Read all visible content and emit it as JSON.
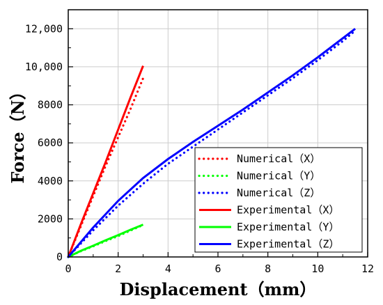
{
  "chart_data": {
    "type": "line",
    "xlabel": "Displacement（mm）",
    "ylabel": "Force（N）",
    "xlim": [
      0,
      12
    ],
    "ylim": [
      0,
      13000
    ],
    "xticks": [
      0,
      2,
      4,
      6,
      8,
      10,
      12
    ],
    "xtick_labels": [
      "0",
      "2",
      "4",
      "6",
      "8",
      "10",
      "12"
    ],
    "yticks": [
      0,
      2000,
      4000,
      6000,
      8000,
      10000,
      12000
    ],
    "ytick_labels": [
      "0",
      "2000",
      "4000",
      "6000",
      "8000",
      "10,000",
      "12,000"
    ],
    "grid": true,
    "legend_position": "bottom-right",
    "series": [
      {
        "name": "Numerical（X）",
        "color": "#ff0000",
        "style": "dotted",
        "x": [
          0,
          0.5,
          1,
          1.5,
          2,
          2.5,
          3
        ],
        "y": [
          0,
          1600,
          3200,
          4800,
          6300,
          7800,
          9400
        ]
      },
      {
        "name": "Numerical（Y）",
        "color": "#00ff00",
        "style": "dotted",
        "x": [
          0,
          0.5,
          1,
          1.5,
          2,
          2.5,
          3
        ],
        "y": [
          0,
          300,
          560,
          840,
          1100,
          1390,
          1680
        ]
      },
      {
        "name": "Numerical（Z）",
        "color": "#0000ff",
        "style": "dotted",
        "x": [
          0,
          1,
          2,
          3,
          4,
          5,
          6,
          7,
          8,
          9,
          10,
          11,
          11.5
        ],
        "y": [
          0,
          1400,
          2700,
          3850,
          4900,
          5800,
          6700,
          7600,
          8500,
          9400,
          10350,
          11350,
          11900
        ]
      },
      {
        "name": "Experimental（X）",
        "color": "#ff0000",
        "style": "solid",
        "x": [
          0,
          0.5,
          1,
          1.5,
          2,
          2.5,
          3
        ],
        "y": [
          0,
          1700,
          3350,
          5000,
          6700,
          8400,
          10050
        ]
      },
      {
        "name": "Experimental（Y）",
        "color": "#00ff00",
        "style": "solid",
        "x": [
          0,
          0.5,
          1,
          1.5,
          2,
          2.5,
          3
        ],
        "y": [
          0,
          320,
          590,
          880,
          1150,
          1430,
          1700
        ]
      },
      {
        "name": "Experimental（Z）",
        "color": "#0000ff",
        "style": "solid",
        "x": [
          0,
          1,
          2,
          3,
          4,
          5,
          6,
          7,
          8,
          9,
          10,
          11,
          11.5
        ],
        "y": [
          0,
          1550,
          2950,
          4150,
          5150,
          6050,
          6900,
          7750,
          8650,
          9550,
          10500,
          11500,
          12000
        ]
      }
    ]
  }
}
